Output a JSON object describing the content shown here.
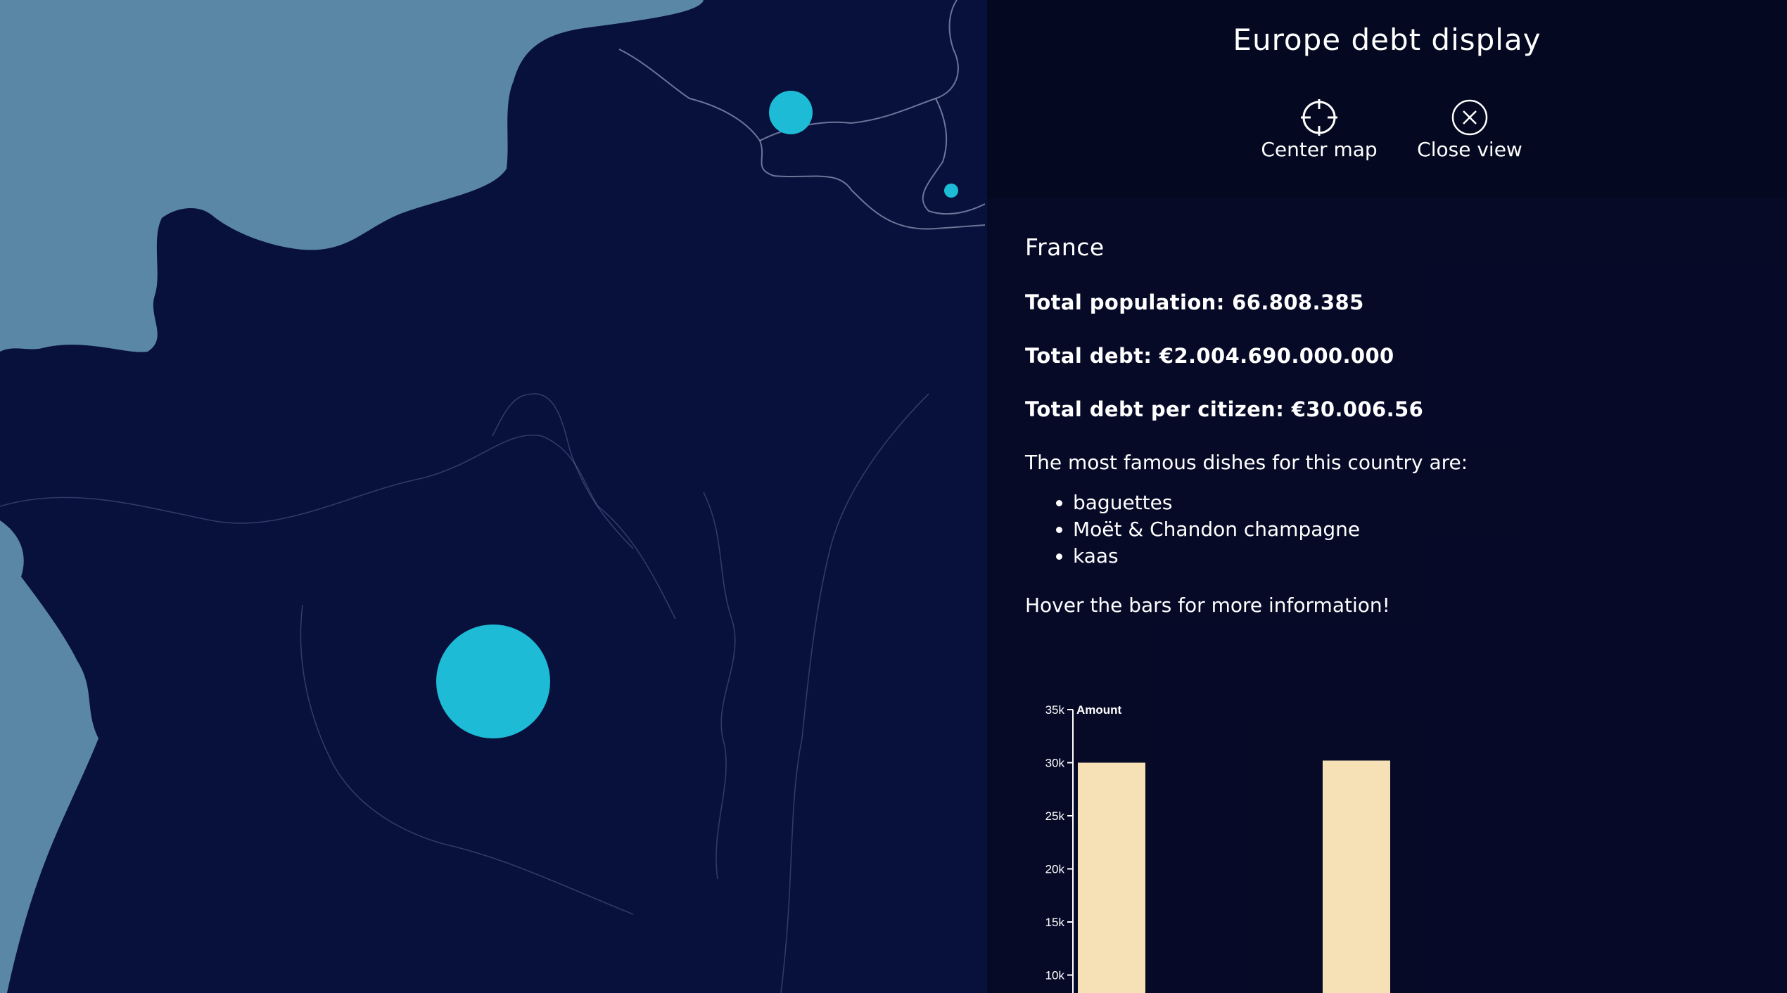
{
  "app": {
    "title": "Europe debt display"
  },
  "header": {
    "center_label": "Center map",
    "close_label": "Close view",
    "center_icon": "crosshair-icon",
    "close_icon": "close-icon"
  },
  "country": {
    "name": "France",
    "population": "Total population: 66.808.385",
    "debt": "Total debt: €2.004.690.000.000",
    "debt_per_citizen": "Total debt per citizen: €30.006.56",
    "dishes_intro": "The most famous dishes for this country are:",
    "dishes": [
      "baguettes",
      "Moët & Chandon champagne",
      "kaas"
    ],
    "hint": "Hover the bars for more information!"
  },
  "colors": {
    "background": "#08103c",
    "sea": "#5a87a6",
    "marker": "#1dbbd5",
    "bar": "#f6e0b5"
  },
  "chart_data": {
    "type": "bar",
    "ylabel": "Amount",
    "ylim": [
      0,
      35000
    ],
    "yticks": [
      "35k",
      "30k",
      "25k",
      "20k",
      "15k",
      "10k"
    ],
    "values": [
      30000,
      30200
    ]
  }
}
